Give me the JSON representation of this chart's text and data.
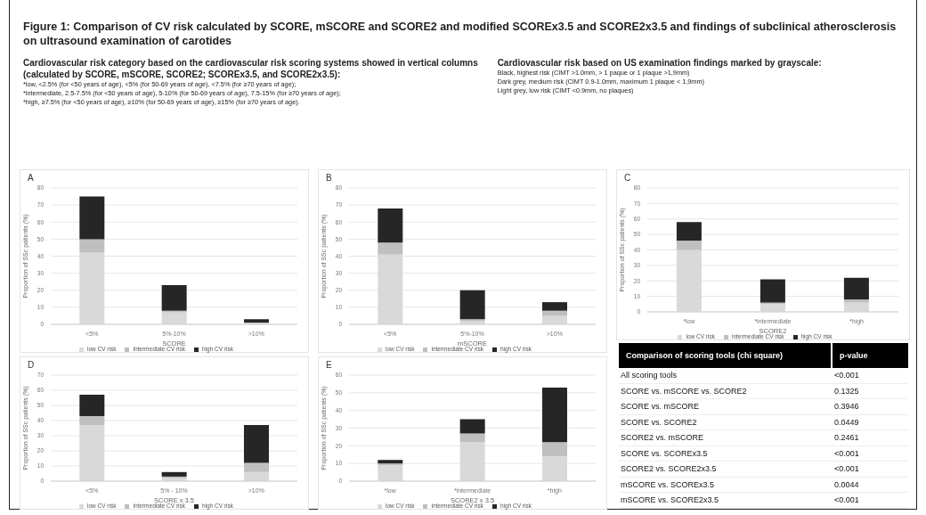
{
  "chart_data": [
    {
      "type": "other",
      "title": "Figure 1: Comparison of CV risk calculated by SCORE, mSCORE and SCORE2 and modified SCOREx3.5 and SCORE2x3.5 and findings of subclinical atherosclerosis on ultrasound examination of carotides",
      "subtitle": "Cardiovascular risk category based on the cardiovascular risk scoring systems showed in vertical columns (calculated by SCORE, mSCORE, SCORE2; SCOREx3.5, and SCORE2x3.5):",
      "legend_title": "Cardiovascular risk based on US examination findings marked by grayscale:",
      "annotations": [
        "*low, <2.5% (for <50 years of age), <5% (for 50-69 years of age), <7.5% (for ≥70 years of age);",
        "*intermediate, 2.5-7.5% (for <50 years of age), 5-10% (for 50-69 years of age), 7.5-15% (for ≥70 years of age);",
        "*high, ≥7.5% (for <50 years of age), ≥10% (for 50-69 years of age), ≥15% (for ≥70 years of age).",
        "Black, highest risk (CIMT >1.0mm, > 1 paque or 1 plaque >1,9mm)",
        "Dark grey, medium risk (CIMT 0.9-1.0mm, maximum 1 plaque < 1,9mm)",
        "Light grey, low risk (CIMT <0.9mm, no plaques)"
      ]
    },
    {
      "type": "bar",
      "title": "A",
      "xlabel": "SCORE",
      "ylabel": "Proportion of SSc patients (%)",
      "categories": [
        "<5%",
        "5%-10%",
        ">10%"
      ],
      "stacked": true,
      "grid": "y",
      "legend": "bottom",
      "ylim": [
        0,
        80
      ],
      "yticks": [
        0,
        10,
        20,
        30,
        40,
        50,
        60,
        70,
        80
      ],
      "series": [
        {
          "name": "low CV risk",
          "color": "#d9d9d9",
          "values": [
            42,
            7,
            1
          ]
        },
        {
          "name": "intermediate CV risk",
          "color": "#bfbfbf",
          "values": [
            8,
            1,
            0
          ]
        },
        {
          "name": "high CV risk",
          "color": "#262626",
          "values": [
            25,
            15,
            2
          ]
        }
      ]
    },
    {
      "type": "bar",
      "title": "B",
      "xlabel": "mSCORE",
      "ylabel": "Proportion of SSc patients (%)",
      "categories": [
        "<5%",
        "5%-10%",
        ">10%"
      ],
      "stacked": true,
      "grid": "y",
      "legend": "bottom",
      "ylim": [
        0,
        80
      ],
      "yticks": [
        0,
        10,
        20,
        30,
        40,
        50,
        60,
        70,
        80
      ],
      "series": [
        {
          "name": "low CV risk",
          "color": "#d9d9d9",
          "values": [
            41,
            2,
            5
          ]
        },
        {
          "name": "intermediate CV risk",
          "color": "#bfbfbf",
          "values": [
            7,
            1,
            3
          ]
        },
        {
          "name": "high CV risk",
          "color": "#262626",
          "values": [
            20,
            17,
            5
          ]
        }
      ]
    },
    {
      "type": "bar",
      "title": "C",
      "xlabel": "SCORE2",
      "ylabel": "Proportion of SSc patients (%)",
      "categories": [
        "*low",
        "*intermediate",
        "*high"
      ],
      "stacked": true,
      "grid": "y",
      "legend": "bottom",
      "ylim": [
        0,
        80
      ],
      "yticks": [
        0,
        10,
        20,
        30,
        40,
        50,
        60,
        70,
        80
      ],
      "series": [
        {
          "name": "low CV risk",
          "color": "#d9d9d9",
          "values": [
            40,
            5,
            6
          ]
        },
        {
          "name": "intermediate CV risk",
          "color": "#bfbfbf",
          "values": [
            6,
            1,
            2
          ]
        },
        {
          "name": "high CV risk",
          "color": "#262626",
          "values": [
            12,
            15,
            14
          ]
        }
      ]
    },
    {
      "type": "bar",
      "title": "D",
      "xlabel": "SCORE x 3.5",
      "ylabel": "Proportion of SSc patients (%)",
      "categories": [
        "<5%",
        "5% - 10%",
        ">10%"
      ],
      "stacked": true,
      "grid": "y",
      "legend": "bottom",
      "ylim": [
        0,
        70
      ],
      "yticks": [
        0,
        10,
        20,
        30,
        40,
        50,
        60,
        70
      ],
      "series": [
        {
          "name": "low CV risk",
          "color": "#d9d9d9",
          "values": [
            37,
            2,
            6
          ]
        },
        {
          "name": "intermediate CV risk",
          "color": "#bfbfbf",
          "values": [
            6,
            1,
            6
          ]
        },
        {
          "name": "high CV risk",
          "color": "#262626",
          "values": [
            14,
            3,
            25
          ]
        }
      ]
    },
    {
      "type": "bar",
      "title": "E",
      "xlabel": "SCORE2 x 3.5",
      "ylabel": "Proportion of SSc patients (%)",
      "categories": [
        "*low",
        "*intermediate",
        "*high"
      ],
      "stacked": true,
      "grid": "y",
      "legend": "bottom",
      "ylim": [
        0,
        60
      ],
      "yticks": [
        0,
        10,
        20,
        30,
        40,
        50,
        60
      ],
      "series": [
        {
          "name": "low CV risk",
          "color": "#d9d9d9",
          "values": [
            9,
            22,
            14
          ]
        },
        {
          "name": "intermediate CV risk",
          "color": "#bfbfbf",
          "values": [
            1,
            5,
            8
          ]
        },
        {
          "name": "high CV risk",
          "color": "#262626",
          "values": [
            2,
            8,
            31
          ]
        }
      ]
    },
    {
      "type": "other",
      "annotations": [
        "Comparison of scoring tools (chi square)",
        "p-value"
      ],
      "categories": [
        "All scoring tools",
        "SCORE vs. mSCORE vs. SCORE2",
        "SCORE vs. mSCORE",
        "SCORE vs. SCORE2",
        "SCORE2 vs. mSCORE",
        "SCORE vs. SCOREx3.5",
        "SCORE2 vs. SCORE2x3.5",
        "mSCORE vs. SCOREx3.5",
        "mSCORE vs. SCORE2x3.5"
      ],
      "value_labels": [
        "<0.001",
        "0.1325",
        "0.3946",
        "0.0449",
        "0.2461",
        "<0.001",
        "<0.001",
        "0.0044",
        "<0.001"
      ]
    }
  ]
}
